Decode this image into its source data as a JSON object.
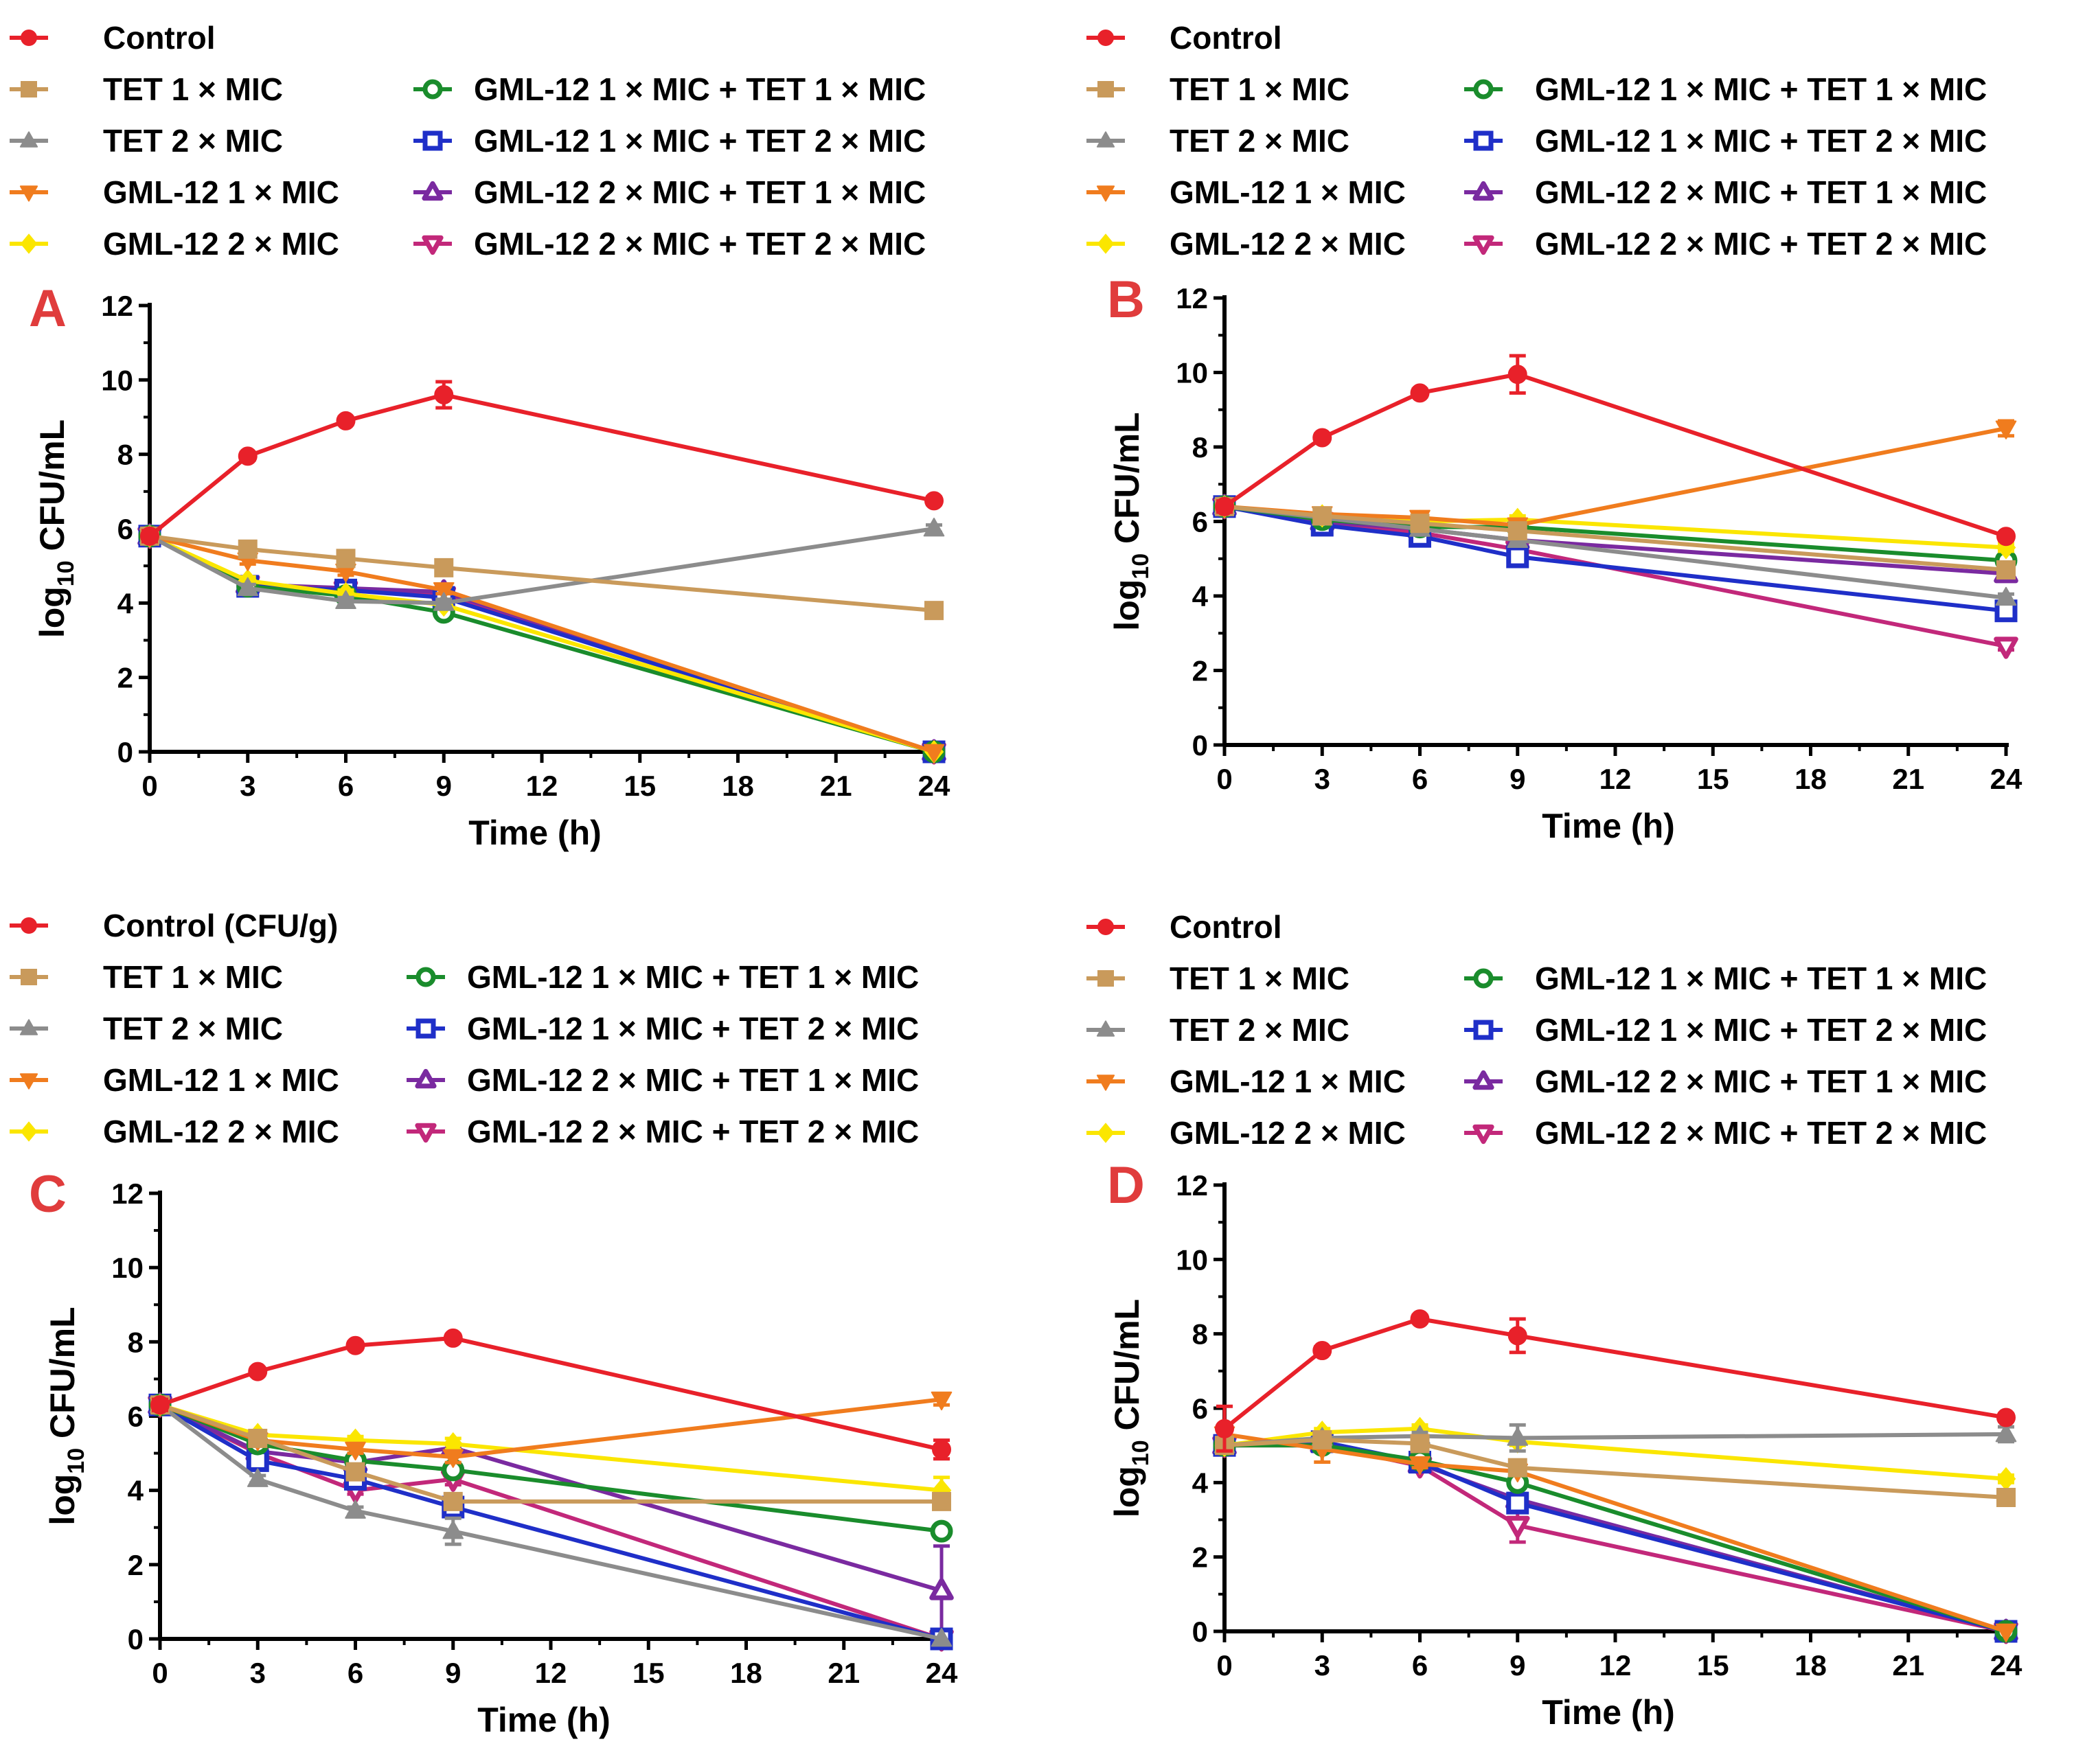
{
  "chart_data": [
    {
      "type": "line",
      "panel": "A",
      "xlabel": "Time (h)",
      "ylabel": "log10 CFU/mL",
      "ylabel_main": "log",
      "ylabel_sub": "10",
      "ylabel_rest": " CFU/mL",
      "xlim": [
        0,
        24
      ],
      "ylim": [
        0,
        12
      ],
      "x_ticks": [
        0,
        3,
        6,
        9,
        12,
        15,
        18,
        21,
        24
      ],
      "y_ticks": [
        0,
        2,
        4,
        6,
        8,
        10,
        12
      ],
      "legend_position": "top",
      "series": [
        {
          "name": "Control",
          "color": "#e8212a",
          "marker": "circle",
          "x": [
            0,
            3,
            6,
            9,
            24
          ],
          "y": [
            5.8,
            7.95,
            8.9,
            9.6,
            6.75
          ],
          "err": [
            0.15,
            0.1,
            0.1,
            0.35,
            0.1
          ]
        },
        {
          "name": "TET 1 × MIC",
          "color": "#c99a5b",
          "marker": "square",
          "x": [
            0,
            3,
            6,
            9,
            24
          ],
          "y": [
            5.8,
            5.45,
            5.2,
            4.95,
            3.8
          ],
          "err": [
            0.1,
            0.1,
            0.1,
            0.1,
            0.1
          ]
        },
        {
          "name": "TET 2 × MIC",
          "color": "#8c8c8c",
          "marker": "triangle-up",
          "x": [
            0,
            3,
            6,
            9,
            24
          ],
          "y": [
            5.8,
            4.4,
            4.05,
            4.0,
            6.0
          ],
          "err": [
            0.1,
            0.1,
            0.1,
            0.1,
            0.1
          ]
        },
        {
          "name": "GML-12 1 × MIC",
          "color": "#f07c1e",
          "marker": "triangle-down",
          "x": [
            0,
            3,
            6,
            9,
            24
          ],
          "y": [
            5.8,
            5.15,
            4.85,
            4.35,
            0
          ],
          "err": [
            0.1,
            0.1,
            0.1,
            0.1,
            0
          ]
        },
        {
          "name": "GML-12 2 × MIC",
          "color": "#fbe600",
          "marker": "diamond",
          "x": [
            0,
            3,
            6,
            9,
            24
          ],
          "y": [
            5.8,
            4.6,
            4.25,
            3.95,
            0
          ],
          "err": [
            0.1,
            0.1,
            0.1,
            0.1,
            0
          ]
        },
        {
          "name": "GML-12 1 × MIC + TET 1 × MIC",
          "color": "#1a8c2c",
          "marker": "circle-open",
          "x": [
            0,
            3,
            6,
            9,
            24
          ],
          "y": [
            5.8,
            4.45,
            4.2,
            3.75,
            0
          ],
          "err": [
            0.1,
            0.1,
            0.1,
            0.1,
            0
          ]
        },
        {
          "name": "GML-12 1 × MIC + TET 2 × MIC",
          "color": "#1f2fc8",
          "marker": "square-open",
          "x": [
            0,
            3,
            6,
            9,
            24
          ],
          "y": [
            5.8,
            4.45,
            4.35,
            4.15,
            0
          ],
          "err": [
            0.1,
            0.1,
            0.1,
            0.1,
            0
          ]
        },
        {
          "name": "GML-12 2 × MIC + TET 1 × MIC",
          "color": "#7a2aa0",
          "marker": "triangle-up-open",
          "x": [
            0,
            3,
            6,
            9,
            24
          ],
          "y": [
            5.8,
            4.5,
            4.4,
            4.3,
            0
          ],
          "err": [
            0.1,
            0.1,
            0.1,
            0.1,
            0
          ]
        },
        {
          "name": "GML-12 2 × MIC + TET 2 × MIC",
          "color": "#c2287a",
          "marker": "triangle-down-open",
          "x": [
            0,
            3,
            6,
            9,
            24
          ],
          "y": [
            5.8,
            4.5,
            4.35,
            4.2,
            0
          ],
          "err": [
            0.1,
            0.1,
            0.1,
            0.1,
            0
          ]
        }
      ]
    },
    {
      "type": "line",
      "panel": "B",
      "xlabel": "Time (h)",
      "ylabel": "log10 CFU/mL",
      "ylabel_main": "log",
      "ylabel_sub": "10",
      "ylabel_rest": " CFU/mL",
      "xlim": [
        0,
        24
      ],
      "ylim": [
        0,
        12
      ],
      "x_ticks": [
        0,
        3,
        6,
        9,
        12,
        15,
        18,
        21,
        24
      ],
      "y_ticks": [
        0,
        2,
        4,
        6,
        8,
        10,
        12
      ],
      "legend_position": "top",
      "series": [
        {
          "name": "Control",
          "color": "#e8212a",
          "marker": "circle",
          "x": [
            0,
            3,
            6,
            9,
            24
          ],
          "y": [
            6.4,
            8.25,
            9.45,
            9.95,
            5.6
          ],
          "err": [
            0.15,
            0.1,
            0.1,
            0.5,
            0.1
          ]
        },
        {
          "name": "TET 1 × MIC",
          "color": "#c99a5b",
          "marker": "square",
          "x": [
            0,
            3,
            6,
            9,
            24
          ],
          "y": [
            6.4,
            6.15,
            5.95,
            5.75,
            4.7
          ],
          "err": [
            0.1,
            0.1,
            0.15,
            0.1,
            0.15
          ]
        },
        {
          "name": "TET 2 × MIC",
          "color": "#8c8c8c",
          "marker": "triangle-up",
          "x": [
            0,
            3,
            6,
            9,
            24
          ],
          "y": [
            6.4,
            6.1,
            5.8,
            5.5,
            3.95
          ],
          "err": [
            0.1,
            0.1,
            0.1,
            0.1,
            0.1
          ]
        },
        {
          "name": "GML-12 1 × MIC",
          "color": "#f07c1e",
          "marker": "triangle-down",
          "x": [
            0,
            3,
            6,
            9,
            24
          ],
          "y": [
            6.4,
            6.2,
            6.1,
            5.9,
            8.5
          ],
          "err": [
            0.1,
            0.1,
            0.1,
            0.1,
            0.2
          ]
        },
        {
          "name": "GML-12 2 × MIC",
          "color": "#fbe600",
          "marker": "diamond",
          "x": [
            0,
            3,
            6,
            9,
            24
          ],
          "y": [
            6.4,
            6.15,
            6.0,
            6.05,
            5.3
          ],
          "err": [
            0.1,
            0.1,
            0.1,
            0.1,
            0.1
          ]
        },
        {
          "name": "GML-12 1 × MIC + TET 1 × MIC",
          "color": "#1a8c2c",
          "marker": "circle-open",
          "x": [
            0,
            3,
            6,
            9,
            24
          ],
          "y": [
            6.4,
            6.05,
            5.85,
            5.85,
            4.95
          ],
          "err": [
            0.1,
            0.1,
            0.1,
            0.1,
            0.1
          ]
        },
        {
          "name": "GML-12 1 × MIC + TET 2 × MIC",
          "color": "#1f2fc8",
          "marker": "square-open",
          "x": [
            0,
            3,
            6,
            9,
            24
          ],
          "y": [
            6.4,
            5.9,
            5.6,
            5.05,
            3.6
          ],
          "err": [
            0.1,
            0.1,
            0.1,
            0.15,
            0.15
          ]
        },
        {
          "name": "GML-12 2 × MIC + TET 1 × MIC",
          "color": "#7a2aa0",
          "marker": "triangle-up-open",
          "x": [
            0,
            3,
            6,
            9,
            24
          ],
          "y": [
            6.4,
            6.0,
            5.8,
            5.5,
            4.6
          ],
          "err": [
            0.1,
            0.1,
            0.1,
            0.1,
            0.1
          ]
        },
        {
          "name": "GML-12 2 × MIC + TET 2 × MIC",
          "color": "#c2287a",
          "marker": "triangle-down-open",
          "x": [
            0,
            3,
            6,
            9,
            24
          ],
          "y": [
            6.4,
            6.0,
            5.7,
            5.25,
            2.65
          ],
          "err": [
            0.1,
            0.1,
            0.1,
            0.1,
            0.1
          ]
        }
      ]
    },
    {
      "type": "line",
      "panel": "C",
      "xlabel": "Time (h)",
      "ylabel": "log10 CFU/mL",
      "ylabel_main": "log",
      "ylabel_sub": "10",
      "ylabel_rest": " CFU/mL",
      "xlim": [
        0,
        24
      ],
      "ylim": [
        0,
        12
      ],
      "x_ticks": [
        0,
        3,
        6,
        9,
        12,
        15,
        18,
        21,
        24
      ],
      "y_ticks": [
        0,
        2,
        4,
        6,
        8,
        10,
        12
      ],
      "legend_position": "top",
      "series": [
        {
          "name": "Control (CFU/g)",
          "color": "#e8212a",
          "marker": "circle",
          "x": [
            0,
            3,
            6,
            9,
            24
          ],
          "y": [
            6.3,
            7.2,
            7.9,
            8.1,
            5.1
          ],
          "err": [
            0.15,
            0.1,
            0.1,
            0.1,
            0.25
          ]
        },
        {
          "name": "TET 1 × MIC",
          "color": "#c99a5b",
          "marker": "square",
          "x": [
            0,
            3,
            6,
            9,
            24
          ],
          "y": [
            6.3,
            5.4,
            4.5,
            3.7,
            3.7
          ],
          "err": [
            0.1,
            0.2,
            0.2,
            0.2,
            0.2
          ]
        },
        {
          "name": "TET 2 × MIC",
          "color": "#8c8c8c",
          "marker": "triangle-up",
          "x": [
            0,
            3,
            6,
            9,
            24
          ],
          "y": [
            6.3,
            4.3,
            3.45,
            2.9,
            0
          ],
          "err": [
            0.1,
            0.1,
            0.1,
            0.35,
            0
          ]
        },
        {
          "name": "GML-12 1 × MIC",
          "color": "#f07c1e",
          "marker": "triangle-down",
          "x": [
            0,
            3,
            6,
            9,
            24
          ],
          "y": [
            6.3,
            5.35,
            5.1,
            4.9,
            6.45
          ],
          "err": [
            0.1,
            0.15,
            0.1,
            0.15,
            0.15
          ]
        },
        {
          "name": "GML-12 2 × MIC",
          "color": "#fbe600",
          "marker": "diamond",
          "x": [
            0,
            3,
            6,
            9,
            24
          ],
          "y": [
            6.3,
            5.5,
            5.35,
            5.25,
            4.0
          ],
          "err": [
            0.1,
            0.1,
            0.1,
            0.15,
            0.35
          ]
        },
        {
          "name": "GML-12 1 × MIC + TET 1 × MIC",
          "color": "#1a8c2c",
          "marker": "circle-open",
          "x": [
            0,
            3,
            6,
            9,
            24
          ],
          "y": [
            6.3,
            5.25,
            4.8,
            4.55,
            2.9
          ],
          "err": [
            0.1,
            0.1,
            0.1,
            0.1,
            0.15
          ]
        },
        {
          "name": "GML-12 1 × MIC + TET 2 × MIC",
          "color": "#1f2fc8",
          "marker": "square-open",
          "x": [
            0,
            3,
            6,
            9,
            24
          ],
          "y": [
            6.3,
            4.8,
            4.3,
            3.55,
            0
          ],
          "err": [
            0.1,
            0.15,
            0.15,
            0.15,
            0
          ]
        },
        {
          "name": "GML-12 2 × MIC + TET 1 × MIC",
          "color": "#7a2aa0",
          "marker": "triangle-up-open",
          "x": [
            0,
            3,
            6,
            9,
            24
          ],
          "y": [
            6.3,
            5.05,
            4.75,
            5.15,
            1.3
          ],
          "err": [
            0.1,
            0.1,
            0.1,
            0.1,
            1.2
          ]
        },
        {
          "name": "GML-12 2 × MIC + TET 2 × MIC",
          "color": "#c2287a",
          "marker": "triangle-down-open",
          "x": [
            0,
            3,
            6,
            9,
            24
          ],
          "y": [
            6.3,
            5.0,
            4.0,
            4.3,
            0
          ],
          "err": [
            0.1,
            0.1,
            0.1,
            0.15,
            0
          ]
        }
      ]
    },
    {
      "type": "line",
      "panel": "D",
      "xlabel": "Time (h)",
      "ylabel": "log10 CFU/mL",
      "ylabel_main": "log",
      "ylabel_sub": "10",
      "ylabel_rest": " CFU/mL",
      "xlim": [
        0,
        24
      ],
      "ylim": [
        0,
        12
      ],
      "x_ticks": [
        0,
        3,
        6,
        9,
        12,
        15,
        18,
        21,
        24
      ],
      "y_ticks": [
        0,
        2,
        4,
        6,
        8,
        10,
        12
      ],
      "legend_position": "top",
      "series": [
        {
          "name": "Control",
          "color": "#e8212a",
          "marker": "circle",
          "x": [
            0,
            3,
            6,
            9,
            24
          ],
          "y": [
            5.45,
            7.55,
            8.4,
            7.95,
            5.75
          ],
          "err": [
            0.6,
            0.1,
            0.1,
            0.45,
            0.1
          ]
        },
        {
          "name": "TET 1 × MIC",
          "color": "#c99a5b",
          "marker": "square",
          "x": [
            0,
            3,
            6,
            9,
            24
          ],
          "y": [
            5.0,
            5.15,
            5.05,
            4.4,
            3.6
          ],
          "err": [
            0.1,
            0.15,
            0.1,
            0.15,
            0.1
          ]
        },
        {
          "name": "TET 2 × MIC",
          "color": "#8c8c8c",
          "marker": "triangle-up",
          "x": [
            0,
            3,
            6,
            9,
            24
          ],
          "y": [
            5.0,
            5.2,
            5.25,
            5.2,
            5.3
          ],
          "err": [
            0.1,
            0.15,
            0.1,
            0.35,
            0.2
          ]
        },
        {
          "name": "GML-12 1 × MIC",
          "color": "#f07c1e",
          "marker": "triangle-down",
          "x": [
            0,
            3,
            6,
            9,
            24
          ],
          "y": [
            5.3,
            4.9,
            4.5,
            4.3,
            0
          ],
          "err": [
            0.1,
            0.35,
            0.1,
            0.1,
            0
          ]
        },
        {
          "name": "GML-12 2 × MIC",
          "color": "#fbe600",
          "marker": "diamond",
          "x": [
            0,
            3,
            6,
            9,
            24
          ],
          "y": [
            5.0,
            5.35,
            5.45,
            5.1,
            4.1
          ],
          "err": [
            0.1,
            0.1,
            0.1,
            0.1,
            0.1
          ]
        },
        {
          "name": "GML-12 1 × MIC + TET 1 × MIC",
          "color": "#1a8c2c",
          "marker": "circle-open",
          "x": [
            0,
            3,
            6,
            9,
            24
          ],
          "y": [
            5.0,
            5.0,
            4.6,
            4.0,
            0
          ],
          "err": [
            0.1,
            0.1,
            0.1,
            0.1,
            0
          ]
        },
        {
          "name": "GML-12 1 × MIC + TET 2 × MIC",
          "color": "#1f2fc8",
          "marker": "square-open",
          "x": [
            0,
            3,
            6,
            9,
            24
          ],
          "y": [
            5.0,
            5.1,
            4.55,
            3.45,
            0
          ],
          "err": [
            0.1,
            0.1,
            0.1,
            0.15,
            0
          ]
        },
        {
          "name": "GML-12 2 × MIC + TET 1 × MIC",
          "color": "#7a2aa0",
          "marker": "triangle-up-open",
          "x": [
            0,
            3,
            6,
            9,
            24
          ],
          "y": [
            5.0,
            5.05,
            4.5,
            3.55,
            0
          ],
          "err": [
            0.1,
            0.1,
            0.1,
            0.1,
            0
          ]
        },
        {
          "name": "GML-12 2 × MIC + TET 2 × MIC",
          "color": "#c2287a",
          "marker": "triangle-down-open",
          "x": [
            0,
            3,
            6,
            9,
            24
          ],
          "y": [
            5.0,
            5.0,
            4.45,
            2.85,
            0
          ],
          "err": [
            0.1,
            0.1,
            0.1,
            0.45,
            0
          ]
        }
      ]
    }
  ]
}
